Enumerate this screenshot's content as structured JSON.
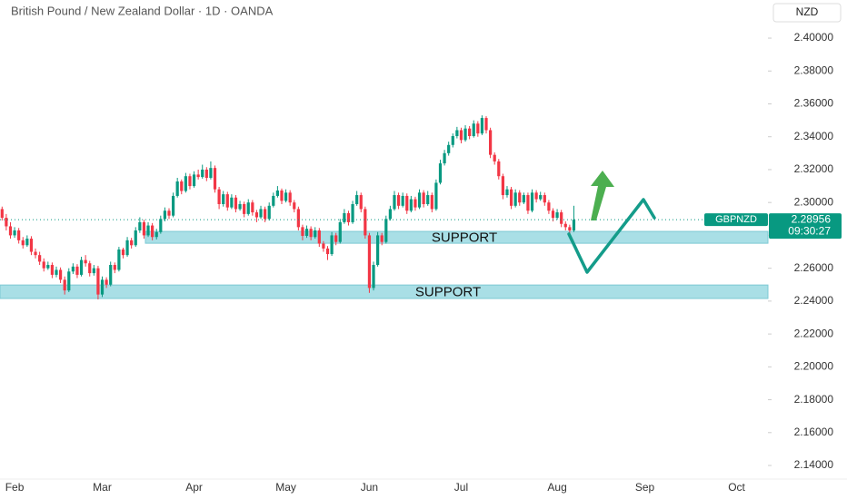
{
  "chart_data": {
    "type": "candlestick",
    "title": "British Pound / New Zealand Dollar · 1D · OANDA",
    "currency": "NZD",
    "up_color": "#089981",
    "down_color": "#f23645",
    "ylim": [
      2.1334,
      2.4232
    ],
    "yticks": [
      {
        "value": 2.14,
        "label": "2.14000"
      },
      {
        "value": 2.16,
        "label": "2.16000"
      },
      {
        "value": 2.18,
        "label": "2.18000"
      },
      {
        "value": 2.2,
        "label": "2.20000"
      },
      {
        "value": 2.22,
        "label": "2.22000"
      },
      {
        "value": 2.24,
        "label": "2.24000"
      },
      {
        "value": 2.26,
        "label": "2.26000"
      },
      {
        "value": 2.28,
        "label": "2.28000"
      },
      {
        "value": 2.3,
        "label": "2.30000"
      },
      {
        "value": 2.32,
        "label": "2.32000"
      },
      {
        "value": 2.34,
        "label": "2.34000"
      },
      {
        "value": 2.36,
        "label": "2.36000"
      },
      {
        "value": 2.38,
        "label": "2.38000"
      },
      {
        "value": 2.4,
        "label": "2.40000"
      }
    ],
    "zones": [
      {
        "label": "SUPPORT",
        "ymin": 2.2752,
        "ymax": 2.2824,
        "color": "#a9dfe6"
      },
      {
        "label": "SUPPORT",
        "ymin": 2.2416,
        "ymax": 2.2498,
        "color": "#a9dfe6"
      }
    ],
    "price_tag": {
      "symbol": "GBPNZD",
      "price": 2.28956,
      "countdown": "09:30:27",
      "color": "#089981"
    },
    "categories": [
      null,
      null,
      null,
      "Feb",
      null,
      null,
      null,
      null,
      null,
      null,
      null,
      null,
      null,
      null,
      null,
      null,
      null,
      null,
      null,
      null,
      null,
      null,
      null,
      null,
      "Mar",
      null,
      null,
      null,
      null,
      null,
      null,
      null,
      null,
      null,
      null,
      null,
      null,
      null,
      null,
      null,
      null,
      null,
      null,
      null,
      null,
      null,
      "Apr",
      null,
      null,
      null,
      null,
      null,
      null,
      null,
      null,
      null,
      null,
      null,
      null,
      null,
      null,
      null,
      null,
      null,
      null,
      null,
      null,
      null,
      "May",
      null,
      null,
      null,
      null,
      null,
      null,
      null,
      null,
      null,
      null,
      null,
      null,
      null,
      null,
      null,
      null,
      null,
      null,
      null,
      "Jun",
      null,
      null,
      null,
      null,
      null,
      null,
      null,
      null,
      null,
      null,
      null,
      null,
      null,
      null,
      null,
      null,
      null,
      null,
      null,
      null,
      null,
      "Jul",
      null,
      null,
      null,
      null,
      null,
      null,
      null,
      null,
      null,
      null,
      null,
      null,
      null,
      null,
      null,
      null,
      null,
      null,
      null,
      null,
      null,
      null,
      "Aug",
      null,
      null,
      null,
      null,
      null,
      null,
      null,
      null,
      null,
      null,
      null,
      null,
      null,
      null,
      null,
      null,
      null,
      null,
      null,
      null,
      "Sep",
      null,
      null,
      null,
      null,
      null,
      null,
      null,
      null,
      null,
      null,
      null,
      null,
      null,
      null,
      null,
      null,
      null,
      null,
      null,
      null,
      null,
      "Oct",
      null,
      null,
      null,
      null,
      null,
      null,
      null
    ],
    "ohlc": [
      [
        2.296,
        2.2975,
        2.289,
        2.2907
      ],
      [
        2.2907,
        2.293,
        2.283,
        2.2855
      ],
      [
        2.2855,
        2.288,
        2.278,
        2.28
      ],
      [
        2.28,
        2.285,
        2.2785,
        2.283
      ],
      [
        2.283,
        2.2845,
        2.275,
        2.277
      ],
      [
        2.277,
        2.279,
        2.272,
        2.274
      ],
      [
        2.274,
        2.28,
        2.273,
        2.278
      ],
      [
        2.278,
        2.2795,
        2.268,
        2.27
      ],
      [
        2.27,
        2.272,
        2.266,
        2.268
      ],
      [
        2.268,
        2.27,
        2.262,
        2.264
      ],
      [
        2.264,
        2.266,
        2.258,
        2.26
      ],
      [
        2.26,
        2.264,
        2.259,
        2.262
      ],
      [
        2.262,
        2.2635,
        2.254,
        2.256
      ],
      [
        2.256,
        2.261,
        2.2545,
        2.259
      ],
      [
        2.259,
        2.2605,
        2.251,
        2.253
      ],
      [
        2.253,
        2.255,
        2.244,
        2.2465
      ],
      [
        2.2465,
        2.26,
        2.2455,
        2.258
      ],
      [
        2.258,
        2.263,
        2.2565,
        2.261
      ],
      [
        2.261,
        2.2625,
        2.254,
        2.256
      ],
      [
        2.256,
        2.267,
        2.255,
        2.265
      ],
      [
        2.265,
        2.268,
        2.261,
        2.263
      ],
      [
        2.263,
        2.2645,
        2.255,
        2.257
      ],
      [
        2.257,
        2.262,
        2.2555,
        2.26
      ],
      [
        2.26,
        2.2615,
        2.241,
        2.244
      ],
      [
        2.244,
        2.255,
        2.2425,
        2.253
      ],
      [
        2.253,
        2.2545,
        2.248,
        2.25
      ],
      [
        2.25,
        2.264,
        2.249,
        2.262
      ],
      [
        2.262,
        2.2635,
        2.257,
        2.259
      ],
      [
        2.259,
        2.273,
        2.258,
        2.2714
      ],
      [
        2.2714,
        2.2725,
        2.266,
        2.268
      ],
      [
        2.268,
        2.279,
        2.267,
        2.277
      ],
      [
        2.277,
        2.2785,
        2.272,
        2.274
      ],
      [
        2.274,
        2.285,
        2.273,
        2.283
      ],
      [
        2.283,
        2.291,
        2.2815,
        2.288
      ],
      [
        2.288,
        2.2895,
        2.278,
        2.28
      ],
      [
        2.28,
        2.288,
        2.279,
        2.286
      ],
      [
        2.286,
        2.2875,
        2.277,
        2.279
      ],
      [
        2.279,
        2.284,
        2.2775,
        2.282
      ],
      [
        2.282,
        2.292,
        2.281,
        2.29
      ],
      [
        2.29,
        2.297,
        2.2885,
        2.295
      ],
      [
        2.295,
        2.2965,
        2.29,
        2.292
      ],
      [
        2.292,
        2.306,
        2.291,
        2.304
      ],
      [
        2.304,
        2.315,
        2.303,
        2.3128
      ],
      [
        2.3128,
        2.314,
        2.305,
        2.307
      ],
      [
        2.307,
        2.318,
        2.306,
        2.316
      ],
      [
        2.316,
        2.3175,
        2.308,
        2.31
      ],
      [
        2.31,
        2.319,
        2.309,
        2.317
      ],
      [
        2.317,
        2.32,
        2.314,
        2.3155
      ],
      [
        2.3155,
        2.323,
        2.3145,
        2.32
      ],
      [
        2.32,
        2.3215,
        2.313,
        2.315
      ],
      [
        2.315,
        2.325,
        2.314,
        2.321
      ],
      [
        2.321,
        2.3225,
        2.306,
        2.308
      ],
      [
        2.308,
        2.3095,
        2.296,
        2.299
      ],
      [
        2.299,
        2.307,
        2.2975,
        2.305
      ],
      [
        2.305,
        2.3065,
        2.295,
        2.297
      ],
      [
        2.297,
        2.305,
        2.296,
        2.303
      ],
      [
        2.303,
        2.3045,
        2.294,
        2.296
      ],
      [
        2.296,
        2.301,
        2.295,
        2.299
      ],
      [
        2.299,
        2.3005,
        2.291,
        2.293
      ],
      [
        2.293,
        2.302,
        2.292,
        2.3
      ],
      [
        2.3,
        2.3015,
        2.292,
        2.294
      ],
      [
        2.294,
        2.2955,
        2.288,
        2.291
      ],
      [
        2.291,
        2.298,
        2.29,
        2.296
      ],
      [
        2.296,
        2.2975,
        2.288,
        2.29
      ],
      [
        2.29,
        2.3,
        2.289,
        2.298
      ],
      [
        2.298,
        2.306,
        2.297,
        2.304
      ],
      [
        2.304,
        2.31,
        2.303,
        2.3073
      ],
      [
        2.3073,
        2.3085,
        2.299,
        2.301
      ],
      [
        2.301,
        2.308,
        2.3,
        2.306
      ],
      [
        2.306,
        2.3075,
        2.298,
        2.3
      ],
      [
        2.3,
        2.3015,
        2.294,
        2.296
      ],
      [
        2.296,
        2.2975,
        2.283,
        2.285
      ],
      [
        2.285,
        2.2865,
        2.277,
        2.2797
      ],
      [
        2.2797,
        2.286,
        2.2785,
        2.284
      ],
      [
        2.284,
        2.2855,
        2.277,
        2.279
      ],
      [
        2.279,
        2.285,
        2.278,
        2.283
      ],
      [
        2.283,
        2.2845,
        2.273,
        2.275
      ],
      [
        2.275,
        2.2765,
        2.27,
        2.272
      ],
      [
        2.272,
        2.2735,
        2.265,
        2.2686
      ],
      [
        2.2686,
        2.282,
        2.2675,
        2.28
      ],
      [
        2.28,
        2.2815,
        2.274,
        2.276
      ],
      [
        2.276,
        2.29,
        2.275,
        2.288
      ],
      [
        2.288,
        2.296,
        2.287,
        2.2935
      ],
      [
        2.2935,
        2.295,
        2.286,
        2.288
      ],
      [
        2.288,
        2.301,
        2.287,
        2.299
      ],
      [
        2.299,
        2.307,
        2.298,
        2.3045
      ],
      [
        2.3045,
        2.306,
        2.294,
        2.296
      ],
      [
        2.296,
        2.2975,
        2.278,
        2.28
      ],
      [
        2.28,
        2.2815,
        2.245,
        2.248
      ],
      [
        2.248,
        2.264,
        2.2465,
        2.262
      ],
      [
        2.262,
        2.282,
        2.261,
        2.28
      ],
      [
        2.28,
        2.2815,
        2.274,
        2.276
      ],
      [
        2.276,
        2.292,
        2.275,
        2.29
      ],
      [
        2.29,
        2.298,
        2.289,
        2.296
      ],
      [
        2.296,
        2.307,
        2.295,
        2.3045
      ],
      [
        2.3045,
        2.306,
        2.296,
        2.298
      ],
      [
        2.298,
        2.306,
        2.297,
        2.304
      ],
      [
        2.304,
        2.3055,
        2.293,
        2.295
      ],
      [
        2.295,
        2.304,
        2.294,
        2.302
      ],
      [
        2.302,
        2.3035,
        2.295,
        2.297
      ],
      [
        2.297,
        2.308,
        2.296,
        2.306
      ],
      [
        2.306,
        2.3075,
        2.297,
        2.299
      ],
      [
        2.299,
        2.307,
        2.298,
        2.3045
      ],
      [
        2.3045,
        2.306,
        2.294,
        2.296
      ],
      [
        2.296,
        2.314,
        2.295,
        2.312
      ],
      [
        2.312,
        2.326,
        2.311,
        2.3238
      ],
      [
        2.3238,
        2.332,
        2.3225,
        2.33
      ],
      [
        2.33,
        2.337,
        2.3285,
        2.335
      ],
      [
        2.335,
        2.342,
        2.3335,
        2.3404
      ],
      [
        2.3404,
        2.346,
        2.339,
        2.344
      ],
      [
        2.344,
        2.3455,
        2.336,
        2.338
      ],
      [
        2.338,
        2.347,
        2.337,
        2.345
      ],
      [
        2.345,
        2.3465,
        2.3385,
        2.3404
      ],
      [
        2.3404,
        2.35,
        2.3395,
        2.348
      ],
      [
        2.348,
        2.3495,
        2.34,
        2.342
      ],
      [
        2.342,
        2.353,
        2.341,
        2.3514
      ],
      [
        2.3514,
        2.3525,
        2.342,
        2.344
      ],
      [
        2.344,
        2.3455,
        2.327,
        2.329
      ],
      [
        2.329,
        2.3305,
        2.323,
        2.325
      ],
      [
        2.325,
        2.3265,
        2.314,
        2.316
      ],
      [
        2.316,
        2.3175,
        2.302,
        2.3045
      ],
      [
        2.3045,
        2.31,
        2.303,
        2.308
      ],
      [
        2.308,
        2.3095,
        2.296,
        2.298
      ],
      [
        2.298,
        2.308,
        2.297,
        2.306
      ],
      [
        2.306,
        2.3075,
        2.298,
        2.3
      ],
      [
        2.3,
        2.306,
        2.299,
        2.3045
      ],
      [
        2.3045,
        2.306,
        2.293,
        2.295
      ],
      [
        2.295,
        2.308,
        2.294,
        2.306
      ],
      [
        2.306,
        2.3075,
        2.3,
        2.302
      ],
      [
        2.302,
        2.3065,
        2.301,
        2.3045
      ],
      [
        2.3045,
        2.306,
        2.298,
        2.3
      ],
      [
        2.3,
        2.3015,
        2.293,
        2.295
      ],
      [
        2.295,
        2.2965,
        2.2885,
        2.2907
      ],
      [
        2.2907,
        2.296,
        2.2895,
        2.294
      ],
      [
        2.294,
        2.2955,
        2.285,
        2.287
      ],
      [
        2.287,
        2.2885,
        2.283,
        2.285
      ],
      [
        2.285,
        2.2865,
        2.28,
        2.283
      ],
      [
        2.283,
        2.298,
        2.282,
        2.28956
      ],
      null,
      null,
      null,
      null,
      null,
      null,
      null,
      null,
      null,
      null,
      null,
      null,
      null,
      null,
      null,
      null,
      null,
      null,
      null,
      null,
      null,
      null,
      null,
      null,
      null,
      null,
      null,
      null,
      null,
      null,
      null,
      null,
      null,
      null,
      null,
      null,
      null,
      null,
      null,
      null,
      null,
      null,
      null,
      null,
      null,
      null,
      null
    ]
  }
}
